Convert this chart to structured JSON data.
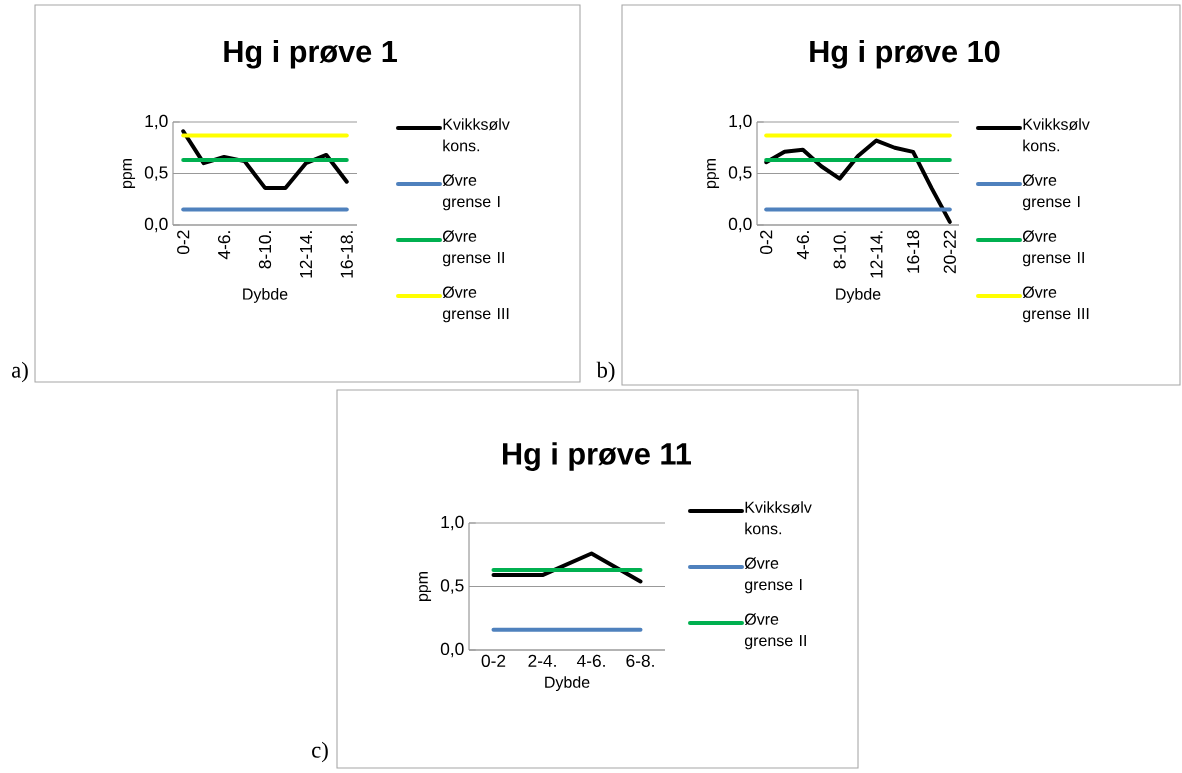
{
  "chart_data": [
    {
      "type": "line",
      "title": "Hg i prøve 1",
      "xlabel": "Dybde",
      "ylabel": "ppm",
      "categories": [
        "0-2",
        null,
        "4-6.",
        null,
        "8-10.",
        null,
        "12-14.",
        null,
        "16-18."
      ],
      "series": [
        {
          "name": "Kvikksølv kons.",
          "color": "#000000",
          "values": [
            0.91,
            0.6,
            0.66,
            0.62,
            0.36,
            0.36,
            0.6,
            0.68,
            0.42
          ]
        },
        {
          "name": "Øvre grense I",
          "color": "#4f81bd",
          "values": [
            0.15,
            0.15,
            0.15,
            0.15,
            0.15,
            0.15,
            0.15,
            0.15,
            0.15
          ]
        },
        {
          "name": "Øvre grense II",
          "color": "#00b050",
          "values": [
            0.63,
            0.63,
            0.63,
            0.63,
            0.63,
            0.63,
            0.63,
            0.63,
            0.63
          ]
        },
        {
          "name": "Øvre grense III",
          "color": "#ffff00",
          "values": [
            0.87,
            0.87,
            0.87,
            0.87,
            0.87,
            0.87,
            0.87,
            0.87,
            0.87
          ]
        }
      ],
      "ylim": [
        0,
        1
      ],
      "yticks": [
        {
          "value": 0,
          "label": "0,0"
        },
        {
          "value": 0.5,
          "label": "0,5"
        },
        {
          "value": 1,
          "label": "1,0"
        }
      ],
      "grid": "y",
      "legend": "right",
      "annotations": [
        "a)"
      ]
    },
    {
      "type": "line",
      "title": "Hg i prøve 10",
      "xlabel": "Dybde",
      "ylabel": "ppm",
      "categories": [
        "0-2",
        null,
        "4-6.",
        null,
        "8-10.",
        null,
        "12-14.",
        null,
        "16-18",
        null,
        "20-22"
      ],
      "series": [
        {
          "name": "Kvikksølv kons.",
          "color": "#000000",
          "values": [
            0.61,
            0.71,
            0.73,
            0.57,
            0.45,
            0.67,
            0.82,
            0.75,
            0.71,
            0.36,
            0.03
          ]
        },
        {
          "name": "Øvre grense I",
          "color": "#4f81bd",
          "values": [
            0.15,
            0.15,
            0.15,
            0.15,
            0.15,
            0.15,
            0.15,
            0.15,
            0.15,
            0.15,
            0.15
          ]
        },
        {
          "name": "Øvre grense II",
          "color": "#00b050",
          "values": [
            0.63,
            0.63,
            0.63,
            0.63,
            0.63,
            0.63,
            0.63,
            0.63,
            0.63,
            0.63,
            0.63
          ]
        },
        {
          "name": "Øvre grense III",
          "color": "#ffff00",
          "values": [
            0.87,
            0.87,
            0.87,
            0.87,
            0.87,
            0.87,
            0.87,
            0.87,
            0.87,
            0.87,
            0.87
          ]
        }
      ],
      "ylim": [
        0,
        1
      ],
      "yticks": [
        {
          "value": 0,
          "label": "0,0"
        },
        {
          "value": 0.5,
          "label": "0,5"
        },
        {
          "value": 1,
          "label": "1,0"
        }
      ],
      "grid": "y",
      "legend": "right",
      "annotations": [
        "b)"
      ]
    },
    {
      "type": "line",
      "title": "Hg i prøve 11",
      "xlabel": "Dybde",
      "ylabel": "ppm",
      "categories": [
        "0-2",
        "2-4.",
        "4-6.",
        "6-8."
      ],
      "series": [
        {
          "name": "Kvikksølv kons.",
          "color": "#000000",
          "values": [
            0.59,
            0.59,
            0.76,
            0.54
          ]
        },
        {
          "name": "Øvre grense I",
          "color": "#4f81bd",
          "values": [
            0.16,
            0.16,
            0.16,
            0.16
          ]
        },
        {
          "name": "Øvre grense II",
          "color": "#00b050",
          "values": [
            0.63,
            0.63,
            0.63,
            0.63
          ]
        }
      ],
      "ylim": [
        0,
        1
      ],
      "yticks": [
        {
          "value": 0,
          "label": "0,0"
        },
        {
          "value": 0.5,
          "label": "0,5"
        },
        {
          "value": 1,
          "label": "1,0"
        }
      ],
      "grid": "y",
      "legend": "right",
      "annotations": [
        "c)"
      ]
    }
  ]
}
